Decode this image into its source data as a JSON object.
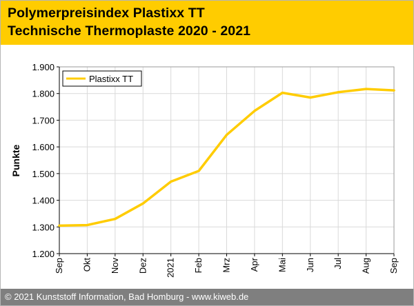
{
  "header": {
    "title_line1": "Polymerpreisindex Plastixx TT",
    "title_line2": "Technische Thermoplaste 2020 - 2021"
  },
  "footer": {
    "text": "© 2021 Kunststoff Information, Bad Homburg - www.kiweb.de"
  },
  "colors": {
    "header_bg": "#ffcc00",
    "series": "#ffcc00",
    "footer_bg": "#7f7f7f",
    "grid": "#d9d9d9"
  },
  "chart_data": {
    "type": "line",
    "title": "",
    "xlabel": "",
    "ylabel": "Punkte",
    "categories": [
      "Sep",
      "Okt",
      "Nov",
      "Dez",
      "2021",
      "Feb",
      "Mrz",
      "Apr",
      "Mai",
      "Jun",
      "Jul",
      "Aug",
      "Sep"
    ],
    "yticks": [
      1200,
      1300,
      1400,
      1500,
      1600,
      1700,
      1800,
      1900
    ],
    "ytick_labels": [
      "1.200",
      "1.300",
      "1.400",
      "1.500",
      "1.600",
      "1.700",
      "1.800",
      "1.900"
    ],
    "ylim": [
      1200,
      1900
    ],
    "grid": true,
    "legend": "top-left",
    "series": [
      {
        "name": "Plastixx TT",
        "values": [
          1305,
          1307,
          1330,
          1388,
          1470,
          1510,
          1645,
          1735,
          1803,
          1785,
          1805,
          1817,
          1812
        ]
      }
    ]
  }
}
